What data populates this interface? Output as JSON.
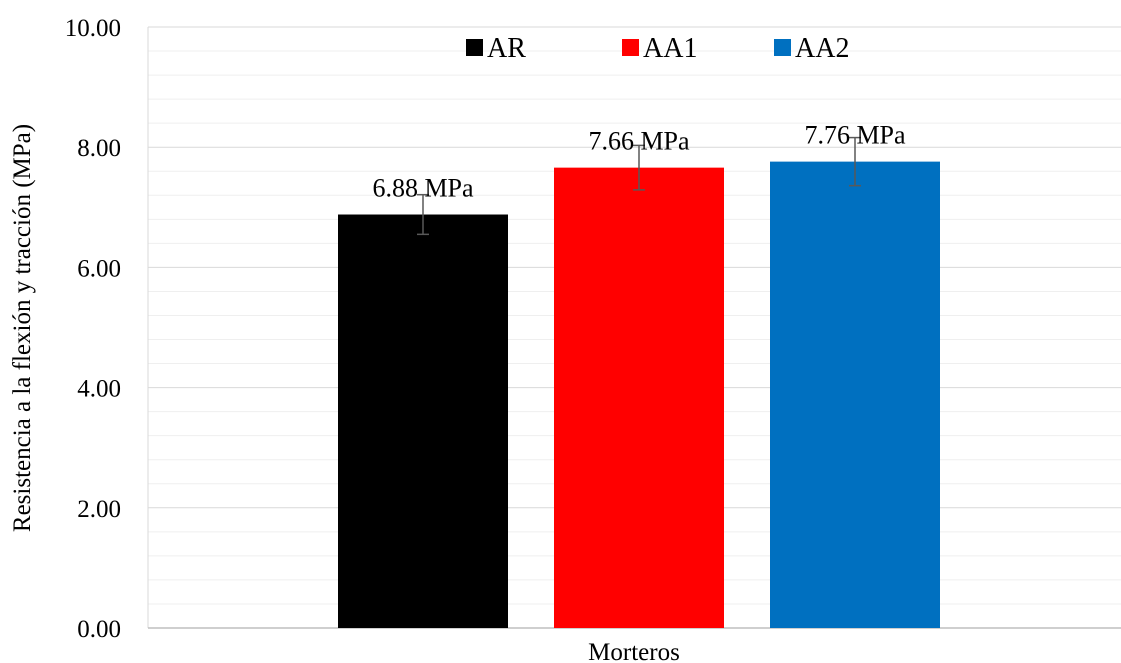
{
  "chart_data": {
    "type": "bar",
    "title": "",
    "xlabel": "Morteros",
    "ylabel": "Resistencia a la flexión y tracción (MPa)",
    "ylim": [
      0,
      10
    ],
    "y_ticks": [
      "0.00",
      "2.00",
      "4.00",
      "6.00",
      "8.00",
      "10.00"
    ],
    "grid": true,
    "legend_position": "top",
    "categories": [
      "Morteros"
    ],
    "series": [
      {
        "name": "AR",
        "values": [
          6.88
        ],
        "error": [
          0.33
        ],
        "label": "6.88 MPa",
        "color": "#000000"
      },
      {
        "name": "AA1",
        "values": [
          7.66
        ],
        "error": [
          0.37
        ],
        "label": "7.66 MPa",
        "color": "#ff0000"
      },
      {
        "name": "AA2",
        "values": [
          7.76
        ],
        "error": [
          0.4
        ],
        "label": "7.76 MPa",
        "color": "#0070c0"
      }
    ]
  }
}
